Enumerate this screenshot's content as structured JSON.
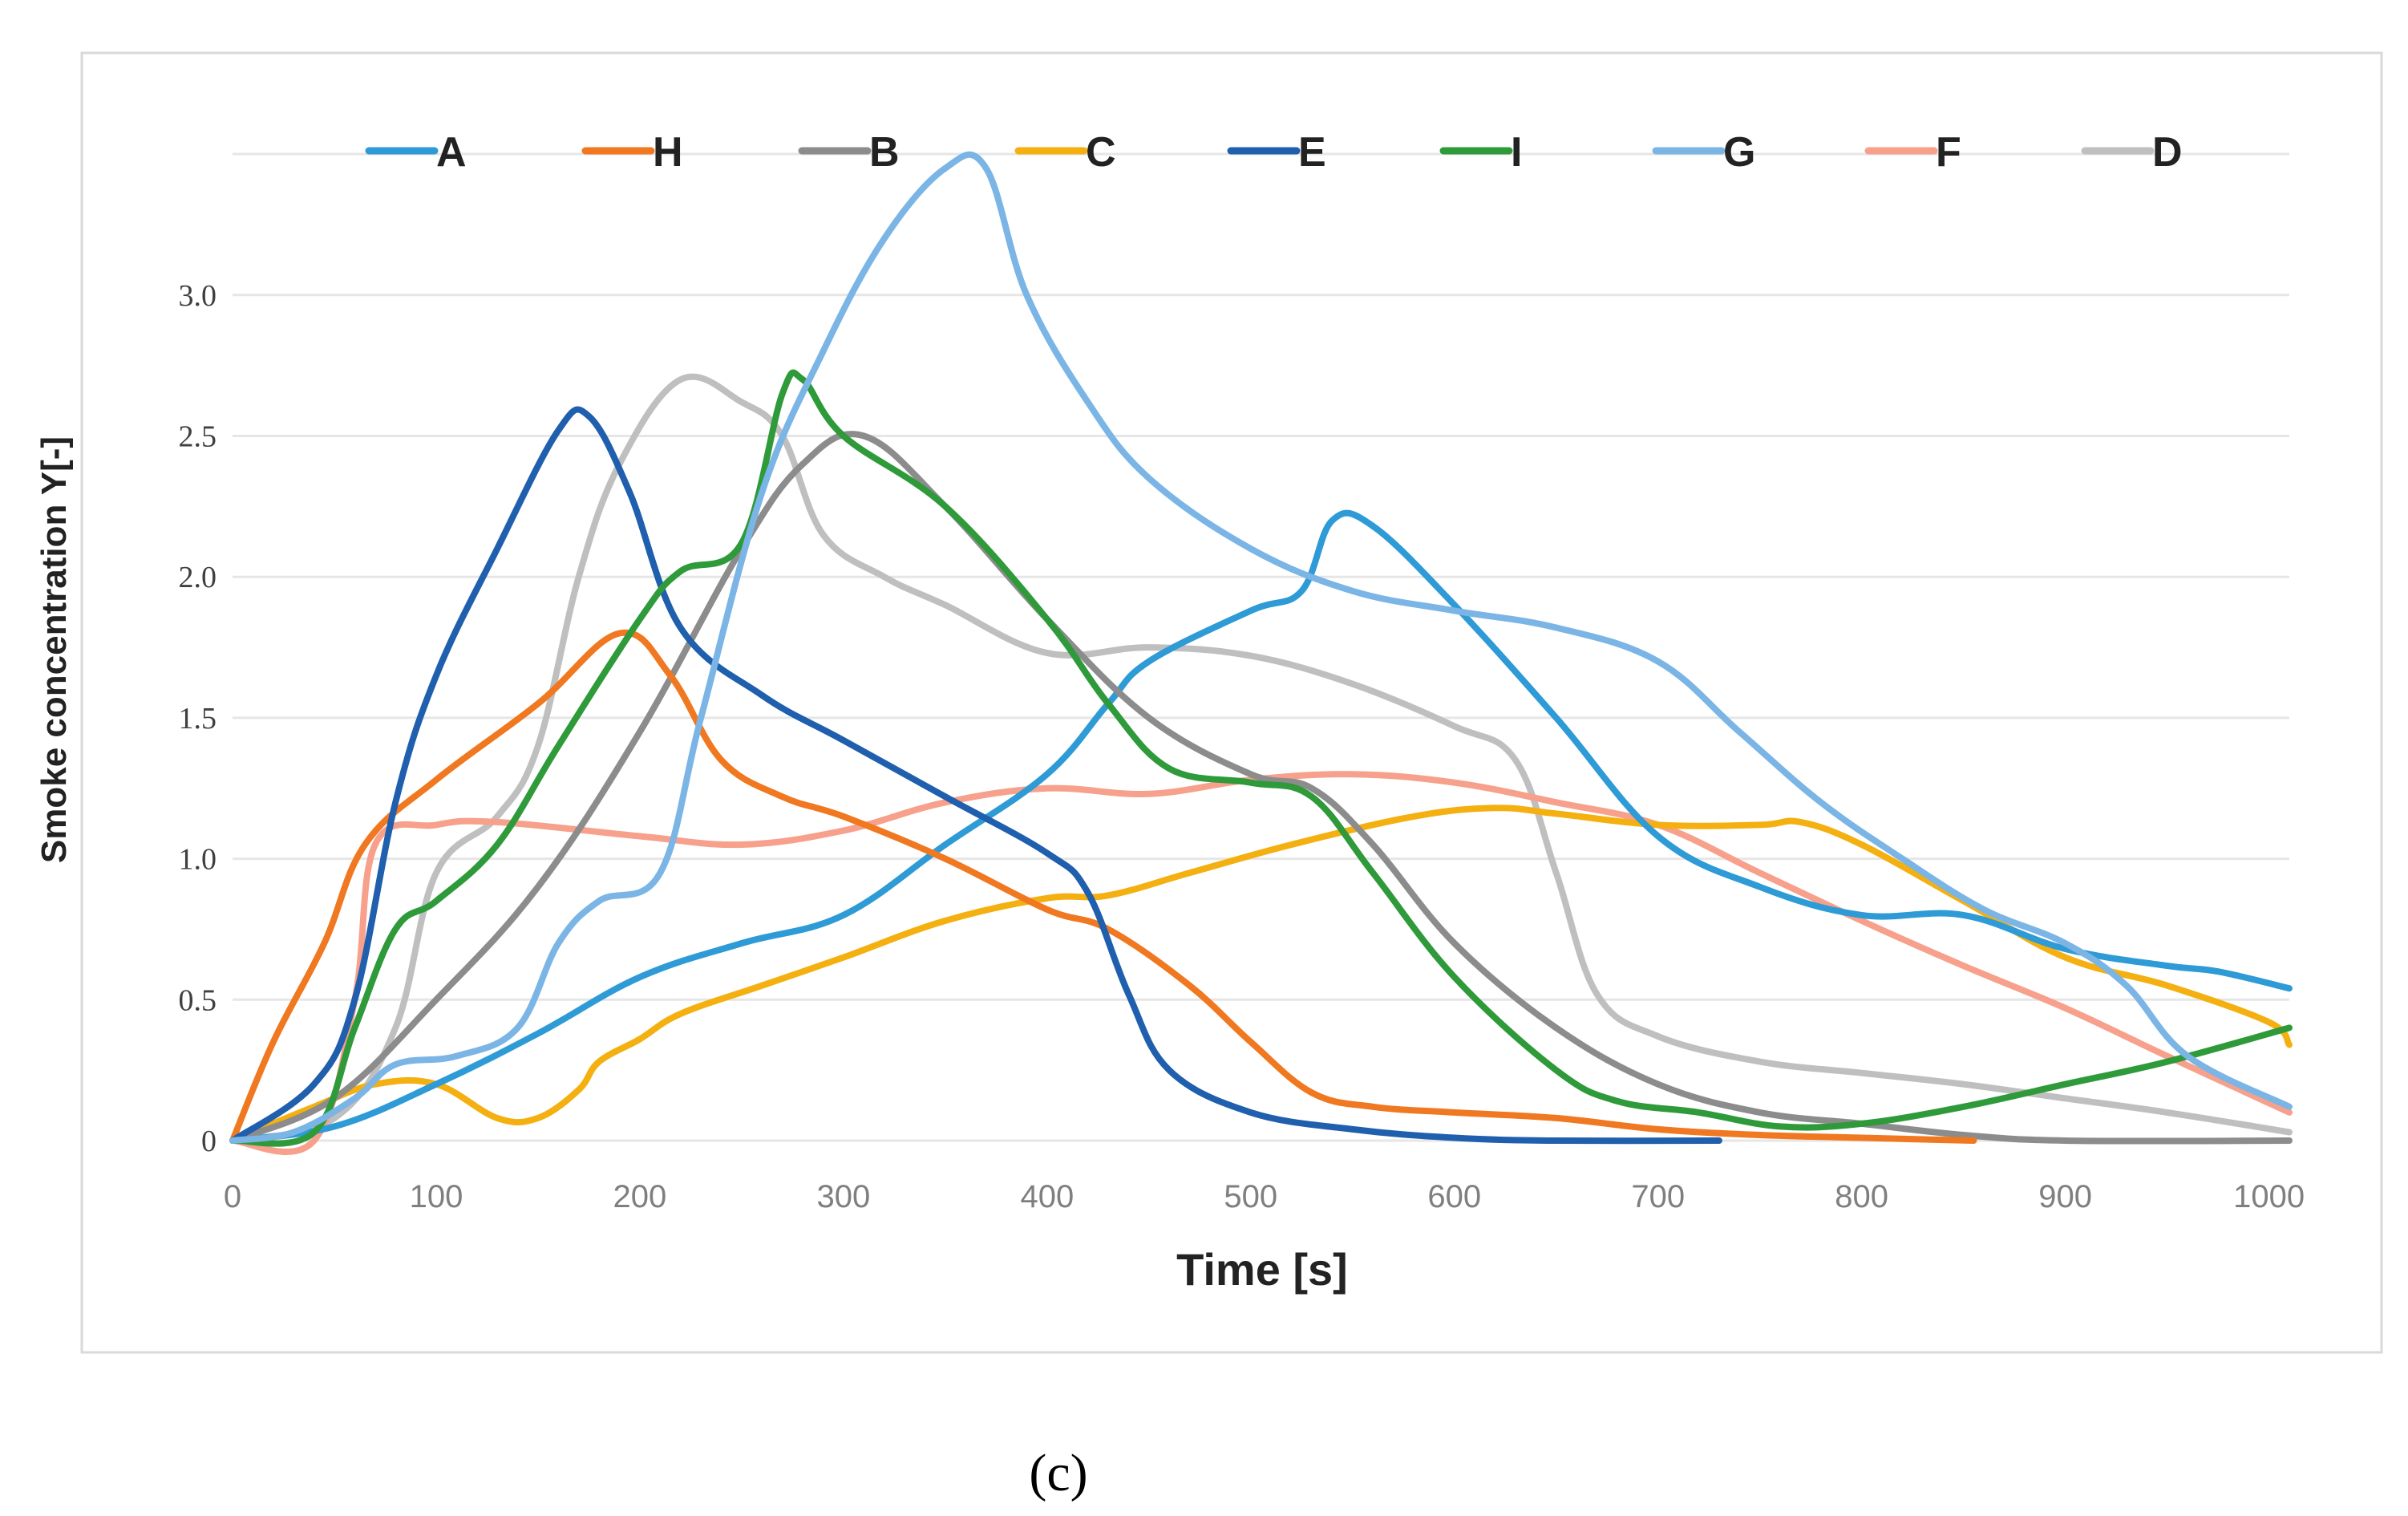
{
  "chart_data": {
    "type": "line",
    "title": "",
    "xlabel": "Time [s]",
    "ylabel": "Smoke concentration  Y[-]",
    "xlim": [
      0,
      1010
    ],
    "ylim": [
      0,
      3.5
    ],
    "x_ticks": [
      "0",
      "100",
      "200",
      "300",
      "400",
      "500",
      "600",
      "700",
      "800",
      "900",
      "1000"
    ],
    "y_ticks": [
      "0",
      "0.5",
      "1.0",
      "1.5",
      "2.0",
      "2.5",
      "3.0"
    ],
    "grid": true,
    "legend_position": "top",
    "caption": "(c)",
    "series": [
      {
        "name": "A",
        "color": "#2e9bd6",
        "points": [
          [
            0,
            0
          ],
          [
            50,
            0.05
          ],
          [
            100,
            0.2
          ],
          [
            150,
            0.38
          ],
          [
            200,
            0.58
          ],
          [
            250,
            0.7
          ],
          [
            300,
            0.8
          ],
          [
            350,
            1.05
          ],
          [
            400,
            1.3
          ],
          [
            430,
            1.55
          ],
          [
            450,
            1.7
          ],
          [
            500,
            1.88
          ],
          [
            525,
            1.95
          ],
          [
            540,
            2.2
          ],
          [
            560,
            2.18
          ],
          [
            600,
            1.9
          ],
          [
            650,
            1.5
          ],
          [
            700,
            1.08
          ],
          [
            750,
            0.9
          ],
          [
            800,
            0.8
          ],
          [
            850,
            0.8
          ],
          [
            900,
            0.68
          ],
          [
            950,
            0.62
          ],
          [
            975,
            0.6
          ],
          [
            1010,
            0.54
          ]
        ]
      },
      {
        "name": "H",
        "color": "#f07820",
        "points": [
          [
            0,
            0
          ],
          [
            20,
            0.35
          ],
          [
            45,
            0.7
          ],
          [
            65,
            1.05
          ],
          [
            100,
            1.28
          ],
          [
            150,
            1.55
          ],
          [
            190,
            1.8
          ],
          [
            215,
            1.65
          ],
          [
            240,
            1.35
          ],
          [
            270,
            1.22
          ],
          [
            300,
            1.15
          ],
          [
            350,
            1.0
          ],
          [
            400,
            0.82
          ],
          [
            430,
            0.75
          ],
          [
            470,
            0.55
          ],
          [
            500,
            0.35
          ],
          [
            530,
            0.17
          ],
          [
            560,
            0.12
          ],
          [
            600,
            0.1
          ],
          [
            650,
            0.08
          ],
          [
            700,
            0.04
          ],
          [
            750,
            0.02
          ],
          [
            800,
            0.01
          ],
          [
            855,
            0.0
          ]
        ]
      },
      {
        "name": "B",
        "color": "#8c8c8c",
        "points": [
          [
            0,
            0
          ],
          [
            50,
            0.15
          ],
          [
            100,
            0.5
          ],
          [
            150,
            0.9
          ],
          [
            200,
            1.45
          ],
          [
            250,
            2.1
          ],
          [
            280,
            2.4
          ],
          [
            310,
            2.5
          ],
          [
            350,
            2.25
          ],
          [
            400,
            1.85
          ],
          [
            450,
            1.5
          ],
          [
            500,
            1.3
          ],
          [
            530,
            1.25
          ],
          [
            560,
            1.05
          ],
          [
            600,
            0.7
          ],
          [
            650,
            0.4
          ],
          [
            700,
            0.2
          ],
          [
            750,
            0.1
          ],
          [
            800,
            0.06
          ],
          [
            850,
            0.02
          ],
          [
            900,
            0.0
          ],
          [
            1010,
            0.0
          ]
        ]
      },
      {
        "name": "C",
        "color": "#f4b010",
        "points": [
          [
            0,
            0
          ],
          [
            40,
            0.12
          ],
          [
            70,
            0.2
          ],
          [
            100,
            0.2
          ],
          [
            130,
            0.08
          ],
          [
            150,
            0.08
          ],
          [
            170,
            0.18
          ],
          [
            180,
            0.28
          ],
          [
            200,
            0.36
          ],
          [
            220,
            0.45
          ],
          [
            260,
            0.55
          ],
          [
            300,
            0.65
          ],
          [
            350,
            0.78
          ],
          [
            400,
            0.86
          ],
          [
            430,
            0.87
          ],
          [
            470,
            0.95
          ],
          [
            520,
            1.05
          ],
          [
            580,
            1.15
          ],
          [
            620,
            1.18
          ],
          [
            650,
            1.16
          ],
          [
            700,
            1.12
          ],
          [
            750,
            1.12
          ],
          [
            770,
            1.13
          ],
          [
            800,
            1.05
          ],
          [
            850,
            0.85
          ],
          [
            900,
            0.65
          ],
          [
            950,
            0.55
          ],
          [
            1000,
            0.42
          ],
          [
            1010,
            0.34
          ]
        ]
      },
      {
        "name": "E",
        "color": "#1f5fad",
        "points": [
          [
            0,
            0
          ],
          [
            40,
            0.2
          ],
          [
            60,
            0.5
          ],
          [
            80,
            1.2
          ],
          [
            100,
            1.65
          ],
          [
            130,
            2.1
          ],
          [
            160,
            2.52
          ],
          [
            175,
            2.57
          ],
          [
            195,
            2.3
          ],
          [
            220,
            1.82
          ],
          [
            260,
            1.58
          ],
          [
            300,
            1.42
          ],
          [
            350,
            1.22
          ],
          [
            400,
            1.02
          ],
          [
            420,
            0.88
          ],
          [
            440,
            0.52
          ],
          [
            460,
            0.25
          ],
          [
            500,
            0.1
          ],
          [
            550,
            0.04
          ],
          [
            600,
            0.01
          ],
          [
            650,
            0.0
          ],
          [
            730,
            0.0
          ]
        ]
      },
      {
        "name": "I",
        "color": "#2e9a3a",
        "points": [
          [
            0,
            0
          ],
          [
            40,
            0.03
          ],
          [
            60,
            0.4
          ],
          [
            80,
            0.75
          ],
          [
            100,
            0.85
          ],
          [
            130,
            1.05
          ],
          [
            160,
            1.4
          ],
          [
            200,
            1.85
          ],
          [
            220,
            2.02
          ],
          [
            250,
            2.12
          ],
          [
            270,
            2.65
          ],
          [
            280,
            2.7
          ],
          [
            300,
            2.5
          ],
          [
            350,
            2.25
          ],
          [
            400,
            1.85
          ],
          [
            430,
            1.55
          ],
          [
            460,
            1.32
          ],
          [
            500,
            1.27
          ],
          [
            530,
            1.22
          ],
          [
            560,
            0.95
          ],
          [
            600,
            0.58
          ],
          [
            650,
            0.25
          ],
          [
            680,
            0.14
          ],
          [
            720,
            0.1
          ],
          [
            760,
            0.05
          ],
          [
            800,
            0.06
          ],
          [
            850,
            0.12
          ],
          [
            900,
            0.2
          ],
          [
            950,
            0.28
          ],
          [
            1010,
            0.4
          ]
        ]
      },
      {
        "name": "G",
        "color": "#7bb5e5",
        "points": [
          [
            0,
            0
          ],
          [
            30,
            0.03
          ],
          [
            60,
            0.15
          ],
          [
            80,
            0.27
          ],
          [
            110,
            0.3
          ],
          [
            140,
            0.4
          ],
          [
            160,
            0.7
          ],
          [
            180,
            0.85
          ],
          [
            210,
            0.95
          ],
          [
            230,
            1.5
          ],
          [
            260,
            2.3
          ],
          [
            290,
            2.8
          ],
          [
            320,
            3.2
          ],
          [
            350,
            3.45
          ],
          [
            370,
            3.45
          ],
          [
            390,
            3.0
          ],
          [
            420,
            2.62
          ],
          [
            450,
            2.35
          ],
          [
            500,
            2.1
          ],
          [
            550,
            1.95
          ],
          [
            600,
            1.88
          ],
          [
            650,
            1.82
          ],
          [
            700,
            1.7
          ],
          [
            740,
            1.45
          ],
          [
            780,
            1.2
          ],
          [
            820,
            1.0
          ],
          [
            860,
            0.82
          ],
          [
            900,
            0.7
          ],
          [
            930,
            0.55
          ],
          [
            960,
            0.3
          ],
          [
            1010,
            0.12
          ]
        ]
      },
      {
        "name": "F",
        "color": "#f7a08c",
        "points": [
          [
            0,
            0
          ],
          [
            40,
            0.0
          ],
          [
            60,
            0.5
          ],
          [
            70,
            1.05
          ],
          [
            100,
            1.12
          ],
          [
            130,
            1.13
          ],
          [
            200,
            1.08
          ],
          [
            250,
            1.05
          ],
          [
            300,
            1.1
          ],
          [
            350,
            1.2
          ],
          [
            400,
            1.25
          ],
          [
            450,
            1.23
          ],
          [
            500,
            1.28
          ],
          [
            550,
            1.3
          ],
          [
            600,
            1.27
          ],
          [
            650,
            1.2
          ],
          [
            700,
            1.12
          ],
          [
            750,
            0.95
          ],
          [
            800,
            0.78
          ],
          [
            850,
            0.62
          ],
          [
            900,
            0.47
          ],
          [
            950,
            0.3
          ],
          [
            1010,
            0.1
          ]
        ]
      },
      {
        "name": "D",
        "color": "#bfbfbf",
        "points": [
          [
            0,
            0
          ],
          [
            50,
            0.08
          ],
          [
            80,
            0.4
          ],
          [
            100,
            0.95
          ],
          [
            130,
            1.15
          ],
          [
            150,
            1.4
          ],
          [
            170,
            2.0
          ],
          [
            190,
            2.4
          ],
          [
            220,
            2.7
          ],
          [
            250,
            2.62
          ],
          [
            270,
            2.5
          ],
          [
            290,
            2.15
          ],
          [
            320,
            2.0
          ],
          [
            350,
            1.9
          ],
          [
            400,
            1.73
          ],
          [
            450,
            1.75
          ],
          [
            500,
            1.72
          ],
          [
            550,
            1.62
          ],
          [
            600,
            1.47
          ],
          [
            630,
            1.35
          ],
          [
            650,
            0.95
          ],
          [
            670,
            0.52
          ],
          [
            700,
            0.37
          ],
          [
            750,
            0.28
          ],
          [
            800,
            0.24
          ],
          [
            850,
            0.2
          ],
          [
            900,
            0.15
          ],
          [
            950,
            0.1
          ],
          [
            1010,
            0.03
          ]
        ]
      }
    ]
  }
}
